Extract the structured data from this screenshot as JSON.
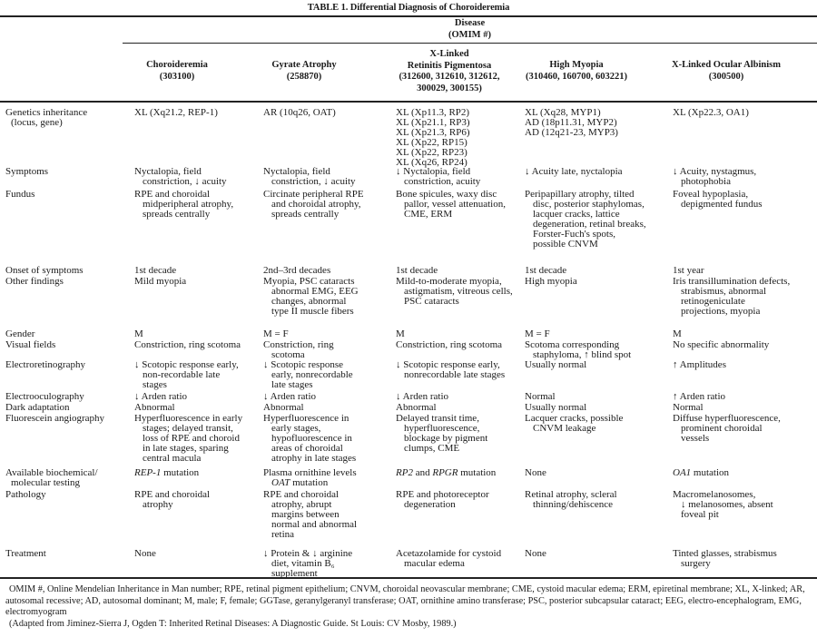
{
  "title": "TABLE 1.   Differential Diagnosis of Choroideremia",
  "header": {
    "group_label": "Disease",
    "group_sub": "(OMIM #)",
    "columns": [
      {
        "lines": [
          "Choroideremia",
          "(303100)"
        ]
      },
      {
        "lines": [
          "Gyrate Atrophy",
          "(258870)"
        ]
      },
      {
        "lines": [
          "X-Linked",
          "Retinitis Pigmentosa",
          "(312600, 312610, 312612,",
          "300029, 300155)"
        ]
      },
      {
        "lines": [
          "High Myopia",
          "(310460, 160700, 603221)"
        ]
      },
      {
        "lines": [
          "X-Linked Ocular Albinism",
          "(300500)"
        ]
      }
    ]
  },
  "rows": [
    {
      "label": [
        "Genetics inheritance",
        "(locus, gene)"
      ],
      "cells": [
        [
          "XL (Xq21.2, REP-1)"
        ],
        [
          "AR (10q26, OAT)"
        ],
        [
          "XL (Xp11.3, RP2)",
          "XL (Xp21.1, RP3)",
          "XL (Xp21.3, RP6)",
          "XL (Xp22, RP15)",
          "XL (Xp22, RP23)",
          "XL (Xq26, RP24)"
        ],
        [
          "XL (Xq28, MYP1)",
          "AD (18p11.31, MYP2)",
          "AD (12q21-23, MYP3)"
        ],
        [
          "XL (Xp22.3, OA1)"
        ]
      ],
      "hang": false
    },
    {
      "label": [
        "Symptoms"
      ],
      "cells": [
        [
          "Nyctalopia, field",
          "constriction, ↓ acuity"
        ],
        [
          "Nyctalopia, field",
          "constriction, ↓ acuity"
        ],
        [
          "↓ Nyctalopia, field",
          "constriction, acuity"
        ],
        [
          "↓ Acuity late, nyctalopia"
        ],
        [
          "↓ Acuity, nystagmus,",
          "photophobia"
        ]
      ]
    },
    {
      "label": [
        "Fundus"
      ],
      "cells": [
        [
          "RPE and choroidal",
          "midperipheral atrophy,",
          "spreads centrally"
        ],
        [
          "Circinate peripheral RPE",
          "and choroidal atrophy,",
          "spreads centrally"
        ],
        [
          "Bone spicules, waxy disc",
          "pallor, vessel attenuation,",
          "CME, ERM"
        ],
        [
          "Peripapillary atrophy, tilted",
          "disc, posterior staphylomas,",
          "lacquer cracks, lattice",
          "degeneration, retinal breaks,",
          "Forster-Fuch's spots,",
          "possible CNVM"
        ],
        [
          "Foveal hypoplasia,",
          "depigmented fundus"
        ]
      ]
    },
    {
      "label": [
        "Onset of symptoms"
      ],
      "cells": [
        [
          "1st decade"
        ],
        [
          "2nd–3rd decades"
        ],
        [
          "1st decade"
        ],
        [
          "1st decade"
        ],
        [
          "1st year"
        ]
      ]
    },
    {
      "label": [
        "Other findings"
      ],
      "cells": [
        [
          "Mild myopia"
        ],
        [
          "Myopia, PSC cataracts",
          "abnormal EMG, EEG",
          "changes, abnormal",
          "type II muscle fibers"
        ],
        [
          "Mild-to-moderate myopia,",
          "astigmatism, vitreous cells,",
          "PSC cataracts"
        ],
        [
          "High myopia"
        ],
        [
          "Iris transillumination defects,",
          "strabismus, abnormal",
          "retinogeniculate",
          "projections, myopia"
        ]
      ]
    },
    {
      "label": [
        "Gender"
      ],
      "cells": [
        [
          "M"
        ],
        [
          "M = F"
        ],
        [
          "M"
        ],
        [
          "M = F"
        ],
        [
          "M"
        ]
      ]
    },
    {
      "label": [
        "Visual fields"
      ],
      "cells": [
        [
          "Constriction, ring scotoma"
        ],
        [
          "Constriction, ring",
          "scotoma"
        ],
        [
          "Constriction, ring scotoma"
        ],
        [
          "Scotoma corresponding",
          "staphyloma, ↑ blind spot"
        ],
        [
          "No specific abnormality"
        ]
      ]
    },
    {
      "label": [
        "Electroretinography"
      ],
      "cells": [
        [
          "↓ Scotopic response early,",
          "non-recordable late",
          "stages"
        ],
        [
          "↓ Scotopic response",
          "early, nonrecordable",
          "late stages"
        ],
        [
          "↓ Scotopic response early,",
          "nonrecordable late stages"
        ],
        [
          "Usually normal"
        ],
        [
          "↑ Amplitudes"
        ]
      ]
    },
    {
      "label": [
        "Electrooculography"
      ],
      "cells": [
        [
          "↓ Arden ratio"
        ],
        [
          "↓ Arden ratio"
        ],
        [
          "↓ Arden ratio"
        ],
        [
          "Normal"
        ],
        [
          "↑ Arden ratio"
        ]
      ]
    },
    {
      "label": [
        "Dark adaptation"
      ],
      "cells": [
        [
          "Abnormal"
        ],
        [
          "Abnormal"
        ],
        [
          "Abnormal"
        ],
        [
          "Usually normal"
        ],
        [
          "Normal"
        ]
      ]
    },
    {
      "label": [
        "Fluorescein angiography"
      ],
      "cells": [
        [
          "Hyperfluorescence in early",
          "stages; delayed transit,",
          "loss of RPE and choroid",
          "in late stages, sparing",
          "central macula"
        ],
        [
          "Hyperfluorescence in",
          "early stages,",
          "hypofluorescence in",
          "areas of choroidal",
          "atrophy in late stages"
        ],
        [
          "Delayed transit time,",
          "hyperfluorescence,",
          "blockage by pigment",
          "clumps, CME"
        ],
        [
          "Lacquer cracks, possible",
          "CNVM leakage"
        ],
        [
          "Diffuse hyperfluorescence,",
          "prominent choroidal",
          "vessels"
        ]
      ]
    },
    {
      "label": [
        "Available biochemical/",
        "molecular testing"
      ],
      "cells": [
        [
          [
            {
              "i": "REP-1"
            },
            {
              "t": " mutation"
            }
          ]
        ],
        [
          "Plasma ornithine levels",
          [
            {
              "i": "OAT"
            },
            {
              "t": " mutation"
            }
          ]
        ],
        [
          [
            {
              "i": "RP2"
            },
            {
              "t": " and "
            },
            {
              "i": "RPGR"
            },
            {
              "t": " mutation"
            }
          ]
        ],
        [
          "None"
        ],
        [
          [
            {
              "i": "OA1"
            },
            {
              "t": " mutation"
            }
          ]
        ]
      ]
    },
    {
      "label": [
        "Pathology"
      ],
      "cells": [
        [
          "RPE and choroidal",
          "atrophy"
        ],
        [
          "RPE and choroidal",
          "atrophy, abrupt",
          "margins between",
          "normal and abnormal",
          "retina"
        ],
        [
          "RPE and photoreceptor",
          "degeneration"
        ],
        [
          "Retinal atrophy, scleral",
          "thinning/dehiscence"
        ],
        [
          "Macromelanosomes,",
          "↓ melanosomes, absent",
          "foveal pit"
        ]
      ]
    },
    {
      "label": [
        "Treatment"
      ],
      "cells": [
        [
          "None"
        ],
        [
          "↓ Protein & ↓ arginine",
          "diet, vitamin B₆",
          "supplement"
        ],
        [
          "Acetazolamide for cystoid",
          "macular edema"
        ],
        [
          "None"
        ],
        [
          "Tinted glasses, strabismus",
          "surgery"
        ]
      ]
    }
  ],
  "footnote": "OMIM #, Online Mendelian Inheritance in Man number; RPE, retinal pigment epithelium; CNVM, choroidal neovascular membrane; CME, cystoid macular edema; ERM, epiretinal membrane; XL, X-linked; AR, autosomal recessive; AD, autosomal dominant; M, male; F, female; GGTase, geranylgeranyl transferase; OAT, ornithine amino transferase; PSC, posterior subcapsular cataract; EEG, electro-encephalogram, EMG, electromyogram",
  "source": "(Adapted from Jiminez-Sierra J, Ogden T: Inherited Retinal Diseases: A Diagnostic Guide. St Louis: CV Mosby, 1989.)"
}
